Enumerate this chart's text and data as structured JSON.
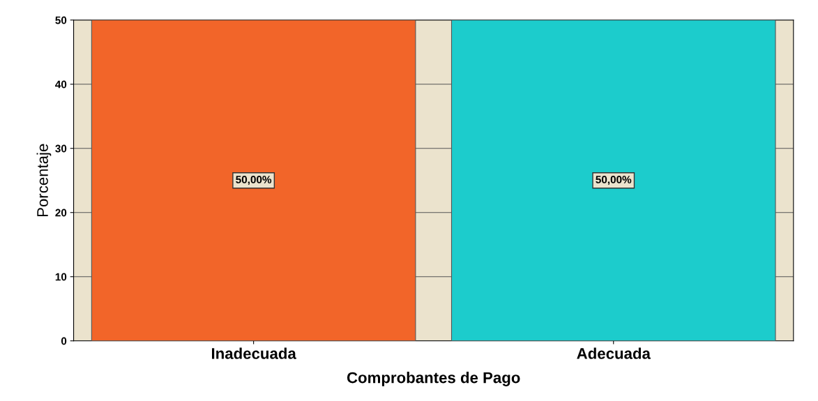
{
  "chart_data": {
    "type": "bar",
    "xlabel": "Comprobantes de Pago",
    "ylabel": "Porcentaje",
    "categories": [
      "Inadecuada",
      "Adecuada"
    ],
    "values": [
      50,
      50
    ],
    "colors": [
      "#f26529",
      "#1ccccc"
    ],
    "value_labels": [
      "50,00%",
      "50,00%"
    ],
    "ylim": [
      0,
      50
    ],
    "yticks": [
      0,
      10,
      20,
      30,
      40,
      50
    ],
    "grid": "y"
  }
}
